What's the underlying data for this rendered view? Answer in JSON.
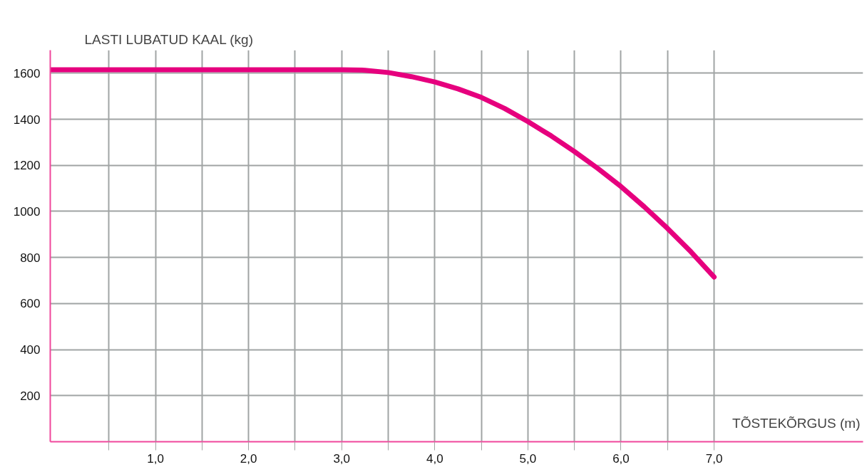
{
  "chart_data": {
    "type": "line",
    "xlabel": "TÕSTEKÕRGUS (m)",
    "ylabel": "LASTI LUBATUD KAAL (kg)",
    "x": [
      -0.13,
      0.5,
      1.0,
      1.5,
      2.0,
      2.5,
      3.0,
      3.25,
      3.5,
      3.75,
      4.0,
      4.25,
      4.5,
      4.75,
      5.0,
      5.25,
      5.5,
      5.75,
      6.0,
      6.25,
      6.5,
      6.75,
      7.0
    ],
    "series": [
      {
        "color": "#e6007e",
        "values": [
          1615,
          1615,
          1615,
          1615,
          1615,
          1615,
          1615,
          1613,
          1603,
          1585,
          1562,
          1532,
          1495,
          1447,
          1390,
          1328,
          1260,
          1187,
          1108,
          1020,
          926,
          825,
          715
        ]
      }
    ],
    "xlim": [
      -0.13,
      8.6
    ],
    "ylim": [
      0,
      1700
    ],
    "xticks": [
      {
        "value": 0.5,
        "label": null
      },
      {
        "value": 1.0,
        "label": "1,0"
      },
      {
        "value": 1.5,
        "label": null
      },
      {
        "value": 2.0,
        "label": "2,0"
      },
      {
        "value": 2.5,
        "label": null
      },
      {
        "value": 3.0,
        "label": "3,0"
      },
      {
        "value": 3.5,
        "label": null
      },
      {
        "value": 4.0,
        "label": "4,0"
      },
      {
        "value": 4.5,
        "label": null
      },
      {
        "value": 5.0,
        "label": "5,0"
      },
      {
        "value": 5.5,
        "label": null
      },
      {
        "value": 6.0,
        "label": "6,0"
      },
      {
        "value": 6.5,
        "label": null
      },
      {
        "value": 7.0,
        "label": "7,0"
      }
    ],
    "yticks": [
      200,
      400,
      600,
      800,
      1000,
      1200,
      1400,
      1600
    ],
    "grid": true,
    "marker": "none",
    "line_style": "solid"
  }
}
